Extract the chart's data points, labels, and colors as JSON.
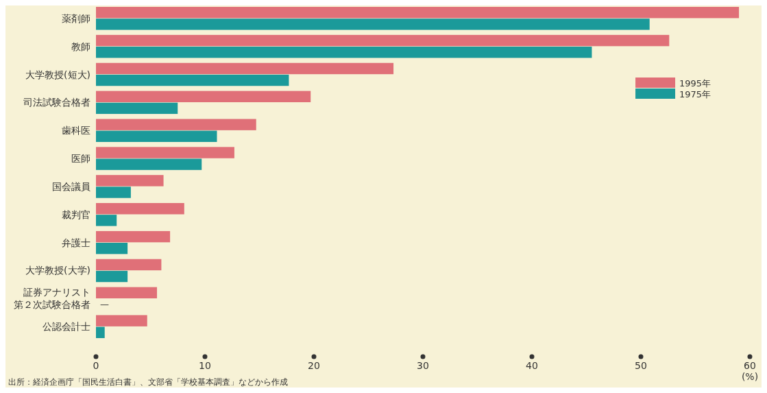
{
  "chart_data": {
    "type": "bar",
    "orientation": "horizontal",
    "categories": [
      "薬剤師",
      "教師",
      "大学教授(短大)",
      "司法試験合格者",
      "歯科医",
      "医師",
      "国会議員",
      "裁判官",
      "弁護士",
      "大学教授(大学)",
      "証券アナリスト第２次試験合格者",
      "公認会計士"
    ],
    "series": [
      {
        "name": "1995年",
        "color": "#e07078",
        "values": [
          59.0,
          52.6,
          27.3,
          19.7,
          14.7,
          12.7,
          6.2,
          8.1,
          6.8,
          6.0,
          5.6,
          4.7
        ]
      },
      {
        "name": "1975年",
        "color": "#1b9a9a",
        "values": [
          50.8,
          45.5,
          17.7,
          7.5,
          11.1,
          9.7,
          3.2,
          1.9,
          2.9,
          2.9,
          null,
          0.8
        ],
        "value_labels": [
          null,
          null,
          null,
          null,
          null,
          null,
          null,
          null,
          null,
          null,
          "—",
          null
        ]
      }
    ],
    "xlim": [
      0,
      60
    ],
    "xticks": [
      0,
      10,
      20,
      30,
      40,
      50,
      60
    ],
    "xlabel": "(%)",
    "grid": false,
    "legend": "top right",
    "annotations": [
      "出所：経済企画庁「国民生活白書」、文部省「学校基本調査」などから作成"
    ]
  }
}
